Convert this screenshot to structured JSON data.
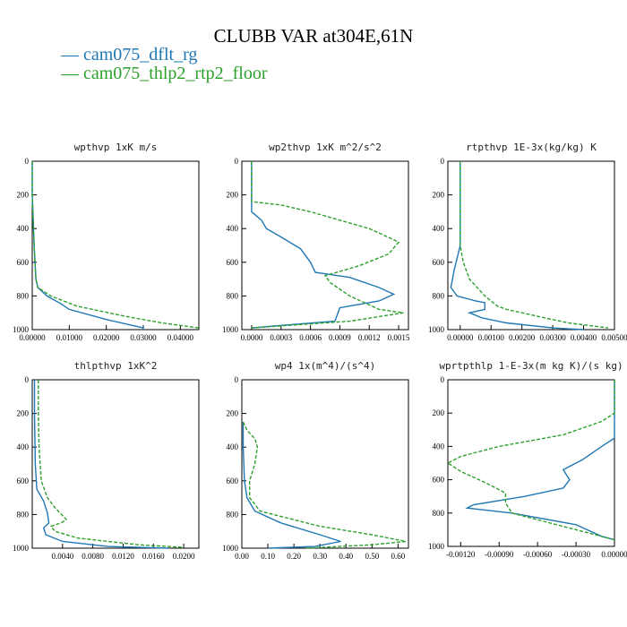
{
  "figure": {
    "title": "CLUBB VAR at304E,61N",
    "legend": [
      {
        "label": "cam075_dflt_rg",
        "color": "#1f77b4"
      },
      {
        "label": "cam075_thlp2_rtp2_floor",
        "color": "#2ca02c"
      }
    ]
  },
  "chart_data": [
    {
      "type": "line",
      "title": "wpthvp   1xK m/s",
      "xlim": [
        0,
        0.045
      ],
      "ylim": [
        1000,
        0
      ],
      "x_ticks": [
        "0.00000",
        "0.01000",
        "0.02000",
        "0.03000",
        "0.04000"
      ],
      "x_tick_values": [
        0,
        0.01,
        0.02,
        0.03,
        0.04
      ],
      "y_ticks": [
        "0",
        "200",
        "400",
        "600",
        "800",
        "1000"
      ],
      "y_tick_values": [
        0,
        200,
        400,
        600,
        800,
        1000
      ],
      "series": [
        {
          "name": "cam075_dflt_rg",
          "style": "solid",
          "points": [
            [
              0,
              0
            ],
            [
              0,
              200
            ],
            [
              0.0005,
              500
            ],
            [
              0.001,
              700
            ],
            [
              0.0015,
              750
            ],
            [
              0.004,
              800
            ],
            [
              0.008,
              850
            ],
            [
              0.01,
              880
            ],
            [
              0.02,
              940
            ],
            [
              0.03,
              990
            ],
            [
              0.03,
              1000
            ]
          ]
        },
        {
          "name": "cam075_thlp2_rtp2_floor",
          "style": "dashed",
          "points": [
            [
              0,
              0
            ],
            [
              0,
              200
            ],
            [
              0.0005,
              500
            ],
            [
              0.001,
              700
            ],
            [
              0.0015,
              750
            ],
            [
              0.005,
              800
            ],
            [
              0.012,
              860
            ],
            [
              0.025,
              920
            ],
            [
              0.035,
              960
            ],
            [
              0.045,
              990
            ]
          ]
        }
      ]
    },
    {
      "type": "line",
      "title": "wp2thvp   1xK m^2/s^2",
      "xlim": [
        -0.0001,
        0.0016
      ],
      "ylim": [
        1000,
        0
      ],
      "x_ticks": [
        "0.0000",
        "0.0003",
        "0.0006",
        "0.0009",
        "0.0012",
        "0.0015"
      ],
      "x_tick_values": [
        0,
        0.0003,
        0.0006,
        0.0009,
        0.0012,
        0.0015
      ],
      "y_ticks": [
        "0",
        "200",
        "400",
        "600",
        "800",
        "1000"
      ],
      "y_tick_values": [
        0,
        200,
        400,
        600,
        800,
        1000
      ],
      "series": [
        {
          "name": "cam075_dflt_rg",
          "style": "solid",
          "points": [
            [
              0,
              0
            ],
            [
              0,
              250
            ],
            [
              0,
              300
            ],
            [
              0.0001,
              350
            ],
            [
              0.00015,
              400
            ],
            [
              0.0003,
              450
            ],
            [
              0.0005,
              520
            ],
            [
              0.0006,
              600
            ],
            [
              0.00065,
              660
            ],
            [
              0.001,
              690
            ],
            [
              0.0013,
              750
            ],
            [
              0.00145,
              790
            ],
            [
              0.0013,
              830
            ],
            [
              0.0009,
              870
            ],
            [
              0.00085,
              950
            ],
            [
              0.0002,
              980
            ],
            [
              0,
              990
            ]
          ]
        },
        {
          "name": "cam075_thlp2_rtp2_floor",
          "style": "dashed",
          "points": [
            [
              0,
              0
            ],
            [
              0,
              240
            ],
            [
              0.0003,
              260
            ],
            [
              0.0006,
              300
            ],
            [
              0.0009,
              350
            ],
            [
              0.0012,
              400
            ],
            [
              0.0015,
              480
            ],
            [
              0.0014,
              550
            ],
            [
              0.0011,
              620
            ],
            [
              0.00075,
              680
            ],
            [
              0.0008,
              720
            ],
            [
              0.001,
              800
            ],
            [
              0.0013,
              880
            ],
            [
              0.00155,
              900
            ],
            [
              0.001,
              950
            ],
            [
              0,
              990
            ]
          ]
        }
      ]
    },
    {
      "type": "line",
      "title": "rtpthvp   1E-3x(kg/kg) K",
      "xlim": [
        -0.0004,
        0.005
      ],
      "ylim": [
        1000,
        0
      ],
      "x_ticks": [
        "0.00000",
        "0.00100",
        "0.00200",
        "0.00300",
        "0.00400",
        "0.00500"
      ],
      "x_tick_values": [
        0,
        0.001,
        0.002,
        0.003,
        0.004,
        0.005
      ],
      "y_ticks": [
        "0",
        "200",
        "400",
        "600",
        "800",
        "1000"
      ],
      "y_tick_values": [
        0,
        200,
        400,
        600,
        800,
        1000
      ],
      "series": [
        {
          "name": "cam075_dflt_rg",
          "style": "solid",
          "points": [
            [
              0,
              0
            ],
            [
              0,
              200
            ],
            [
              0,
              500
            ],
            [
              -0.0002,
              650
            ],
            [
              -0.0003,
              750
            ],
            [
              -0.0001,
              800
            ],
            [
              0.0005,
              830
            ],
            [
              0.0008,
              840
            ],
            [
              0.0008,
              880
            ],
            [
              0.0003,
              900
            ],
            [
              0.0007,
              930
            ],
            [
              0.0015,
              960
            ],
            [
              0.003,
              990
            ],
            [
              0.004,
              1000
            ]
          ]
        },
        {
          "name": "cam075_thlp2_rtp2_floor",
          "style": "dashed",
          "points": [
            [
              0,
              0
            ],
            [
              0,
              200
            ],
            [
              0,
              500
            ],
            [
              0.0001,
              600
            ],
            [
              0.0003,
              700
            ],
            [
              0.0008,
              800
            ],
            [
              0.0012,
              860
            ],
            [
              0.0015,
              880
            ],
            [
              0.0025,
              920
            ],
            [
              0.0035,
              960
            ],
            [
              0.0048,
              990
            ]
          ]
        }
      ]
    },
    {
      "type": "line",
      "title": "thlpthvp   1xK^2",
      "xlim": [
        0,
        0.022
      ],
      "ylim": [
        1000,
        0
      ],
      "x_ticks": [
        "0.0040",
        "0.0080",
        "0.0120",
        "0.0160",
        "0.0200"
      ],
      "x_tick_values": [
        0.004,
        0.008,
        0.012,
        0.016,
        0.02
      ],
      "y_ticks": [
        "0",
        "200",
        "400",
        "600",
        "800",
        "1000"
      ],
      "y_tick_values": [
        0,
        200,
        400,
        600,
        800,
        1000
      ],
      "series": [
        {
          "name": "cam075_dflt_rg",
          "style": "solid",
          "points": [
            [
              0.0003,
              0
            ],
            [
              0.0003,
              200
            ],
            [
              0.0004,
              500
            ],
            [
              0.0006,
              650
            ],
            [
              0.0015,
              720
            ],
            [
              0.002,
              790
            ],
            [
              0.0022,
              850
            ],
            [
              0.0015,
              880
            ],
            [
              0.0018,
              920
            ],
            [
              0.004,
              960
            ],
            [
              0.01,
              990
            ],
            [
              0.018,
              1000
            ]
          ]
        },
        {
          "name": "cam075_thlp2_rtp2_floor",
          "style": "dashed",
          "points": [
            [
              0.0008,
              0
            ],
            [
              0.0008,
              200
            ],
            [
              0.0009,
              400
            ],
            [
              0.0012,
              600
            ],
            [
              0.002,
              700
            ],
            [
              0.003,
              760
            ],
            [
              0.0045,
              830
            ],
            [
              0.0038,
              850
            ],
            [
              0.0025,
              870
            ],
            [
              0.003,
              900
            ],
            [
              0.006,
              940
            ],
            [
              0.014,
              980
            ],
            [
              0.02,
              995
            ]
          ]
        }
      ]
    },
    {
      "type": "line",
      "title": "wp4   1x(m^4)/(s^4)",
      "xlim": [
        0,
        0.64
      ],
      "ylim": [
        1000,
        0
      ],
      "x_ticks": [
        "0.00",
        "0.10",
        "0.20",
        "0.30",
        "0.40",
        "0.50",
        "0.60"
      ],
      "x_tick_values": [
        0,
        0.1,
        0.2,
        0.3,
        0.4,
        0.5,
        0.6
      ],
      "y_ticks": [
        "0",
        "200",
        "400",
        "600",
        "800",
        "1000"
      ],
      "y_tick_values": [
        0,
        200,
        400,
        600,
        800,
        1000
      ],
      "series": [
        {
          "name": "cam075_dflt_rg",
          "style": "solid",
          "points": [
            [
              0.005,
              250
            ],
            [
              0.005,
              400
            ],
            [
              0.01,
              600
            ],
            [
              0.02,
              700
            ],
            [
              0.05,
              780
            ],
            [
              0.15,
              850
            ],
            [
              0.3,
              920
            ],
            [
              0.38,
              960
            ],
            [
              0.28,
              990
            ],
            [
              0.1,
              1000
            ]
          ]
        },
        {
          "name": "cam075_thlp2_rtp2_floor",
          "style": "dashed",
          "points": [
            [
              0.005,
              250
            ],
            [
              0.02,
              300
            ],
            [
              0.05,
              350
            ],
            [
              0.06,
              400
            ],
            [
              0.05,
              500
            ],
            [
              0.03,
              600
            ],
            [
              0.03,
              700
            ],
            [
              0.07,
              780
            ],
            [
              0.3,
              870
            ],
            [
              0.5,
              920
            ],
            [
              0.63,
              960
            ],
            [
              0.5,
              980
            ],
            [
              0.25,
              1000
            ]
          ]
        }
      ]
    },
    {
      "type": "line",
      "title": "wprtpthlp   1-E-3x(m kg K)/(s kg)",
      "xlim": [
        -0.0013,
        0
      ],
      "ylim": [
        1000,
        0
      ],
      "x_ticks": [
        "-0.00120",
        "-0.00090",
        "-0.00060",
        "-0.00030",
        "0.00000"
      ],
      "x_tick_values": [
        -0.0012,
        -0.0009,
        -0.0006,
        -0.0003,
        0
      ],
      "y_ticks": [
        "0",
        "200",
        "400",
        "600",
        "800",
        "1000"
      ],
      "y_tick_values": [
        0,
        200,
        400,
        600,
        800,
        1000
      ],
      "series": [
        {
          "name": "cam075_dflt_rg",
          "style": "solid",
          "points": [
            [
              0,
              0
            ],
            [
              0,
              350
            ],
            [
              -0.0001,
              400
            ],
            [
              -0.00025,
              480
            ],
            [
              -0.0004,
              540
            ],
            [
              -0.00035,
              600
            ],
            [
              -0.0004,
              650
            ],
            [
              -0.0007,
              700
            ],
            [
              -0.0011,
              750
            ],
            [
              -0.00115,
              770
            ],
            [
              -0.0008,
              800
            ],
            [
              -0.0003,
              870
            ],
            [
              -0.0001,
              940
            ],
            [
              0,
              960
            ]
          ]
        },
        {
          "name": "cam075_thlp2_rtp2_floor",
          "style": "dashed",
          "points": [
            [
              0,
              0
            ],
            [
              0,
              200
            ],
            [
              -0.0001,
              250
            ],
            [
              -0.0004,
              330
            ],
            [
              -0.0009,
              400
            ],
            [
              -0.0012,
              460
            ],
            [
              -0.0013,
              500
            ],
            [
              -0.0012,
              550
            ],
            [
              -0.001,
              620
            ],
            [
              -0.00085,
              680
            ],
            [
              -0.00085,
              740
            ],
            [
              -0.0008,
              800
            ],
            [
              -0.0004,
              880
            ],
            [
              -0.0001,
              940
            ],
            [
              0,
              960
            ]
          ]
        }
      ]
    }
  ]
}
